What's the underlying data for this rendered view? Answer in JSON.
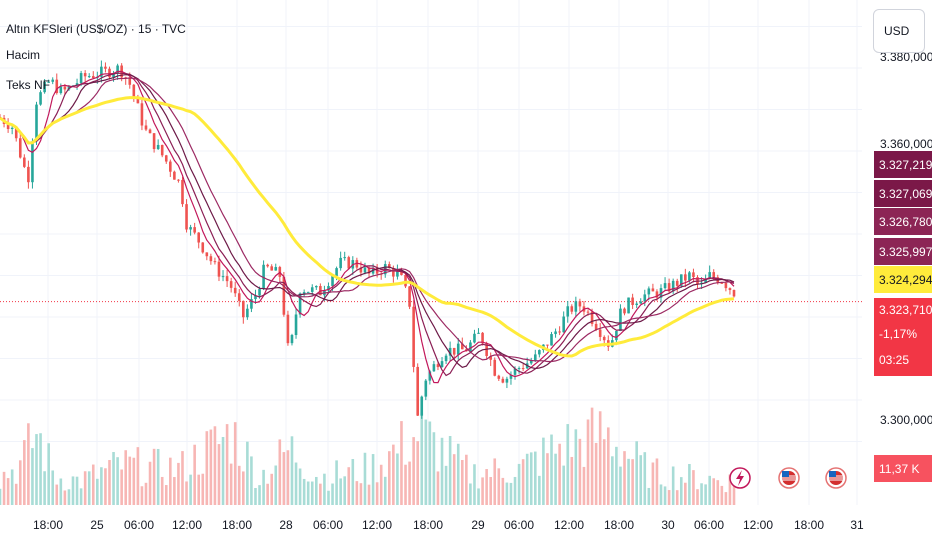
{
  "header": {
    "symbol_line": "Altın KFSleri (US$/OZ) · 15 · TVC",
    "volume_label": "Hacim",
    "ma_label": "Teks NF"
  },
  "currency_button": "USD",
  "colors": {
    "up": "#26a69a",
    "down": "#ef5350",
    "ema": "#ffeb3b",
    "ma": "#8b1f55",
    "price_line": "#f23645",
    "grid": "#f0f3fa"
  },
  "price_axis_labels": [
    "3.380,000",
    "3.360,000",
    "3.300,000"
  ],
  "price_tags": [
    {
      "text": "3.327,219",
      "color": "#7b1848"
    },
    {
      "text": "3.327,069",
      "color": "#7b1848"
    },
    {
      "text": "3.326,780",
      "color": "#8c2555"
    },
    {
      "text": "3.325,997",
      "color": "#8c2555"
    },
    {
      "text": "3.324,294",
      "color": "#ffeb3b"
    },
    {
      "text": "3.323,710",
      "color": "#f23645"
    },
    {
      "text": "-1,17%",
      "color": "#f23645"
    },
    {
      "text": "03:25",
      "color": "#f23645"
    }
  ],
  "volume_tag": "11,37 K",
  "time_axis_labels": [
    "18:00",
    "25",
    "06:00",
    "12:00",
    "18:00",
    "28",
    "06:00",
    "12:00",
    "18:00",
    "29",
    "06:00",
    "12:00",
    "18:00",
    "30",
    "06:00",
    "12:00",
    "18:00",
    "31"
  ],
  "chart_data": {
    "type": "candlestick",
    "title": "Altın KFSleri (US$/OZ) · 15 · TVC",
    "ylim": [
      3285,
      3387
    ],
    "last_price": 3323.71,
    "anchors": [
      [
        0,
        3368
      ],
      [
        12,
        3366
      ],
      [
        28,
        3353
      ],
      [
        36,
        3372
      ],
      [
        50,
        3377
      ],
      [
        62,
        3374
      ],
      [
        85,
        3378
      ],
      [
        105,
        3379
      ],
      [
        120,
        3380
      ],
      [
        130,
        3376
      ],
      [
        145,
        3365
      ],
      [
        165,
        3358
      ],
      [
        180,
        3352
      ],
      [
        187,
        3342
      ],
      [
        200,
        3338
      ],
      [
        215,
        3332
      ],
      [
        230,
        3328
      ],
      [
        243,
        3320
      ],
      [
        255,
        3325
      ],
      [
        265,
        3332
      ],
      [
        280,
        3330
      ],
      [
        289,
        3310
      ],
      [
        300,
        3327
      ],
      [
        320,
        3326
      ],
      [
        340,
        3333
      ],
      [
        355,
        3333
      ],
      [
        370,
        3330
      ],
      [
        385,
        3332
      ],
      [
        400,
        3330
      ],
      [
        410,
        3323
      ],
      [
        417,
        3295
      ],
      [
        425,
        3305
      ],
      [
        445,
        3312
      ],
      [
        465,
        3312
      ],
      [
        480,
        3316
      ],
      [
        495,
        3307
      ],
      [
        505,
        3305
      ],
      [
        520,
        3308
      ],
      [
        535,
        3310
      ],
      [
        545,
        3313
      ],
      [
        560,
        3318
      ],
      [
        570,
        3322
      ],
      [
        582,
        3323
      ],
      [
        597,
        3318
      ],
      [
        610,
        3313
      ],
      [
        622,
        3322
      ],
      [
        640,
        3325
      ],
      [
        660,
        3326
      ],
      [
        675,
        3328
      ],
      [
        690,
        3330
      ],
      [
        700,
        3327
      ],
      [
        710,
        3330
      ],
      [
        722,
        3329
      ],
      [
        734,
        3326
      ]
    ],
    "volume_peaks": [
      [
        0,
        0.35
      ],
      [
        20,
        0.5
      ],
      [
        37,
        0.9
      ],
      [
        55,
        0.35
      ],
      [
        80,
        0.3
      ],
      [
        120,
        0.5
      ],
      [
        180,
        0.45
      ],
      [
        232,
        0.9
      ],
      [
        260,
        0.35
      ],
      [
        290,
        0.7
      ],
      [
        320,
        0.35
      ],
      [
        370,
        0.45
      ],
      [
        420,
        0.9
      ],
      [
        470,
        0.4
      ],
      [
        520,
        0.45
      ],
      [
        555,
        0.7
      ],
      [
        605,
        0.9
      ],
      [
        650,
        0.4
      ],
      [
        690,
        0.35
      ],
      [
        730,
        0.3
      ]
    ]
  }
}
